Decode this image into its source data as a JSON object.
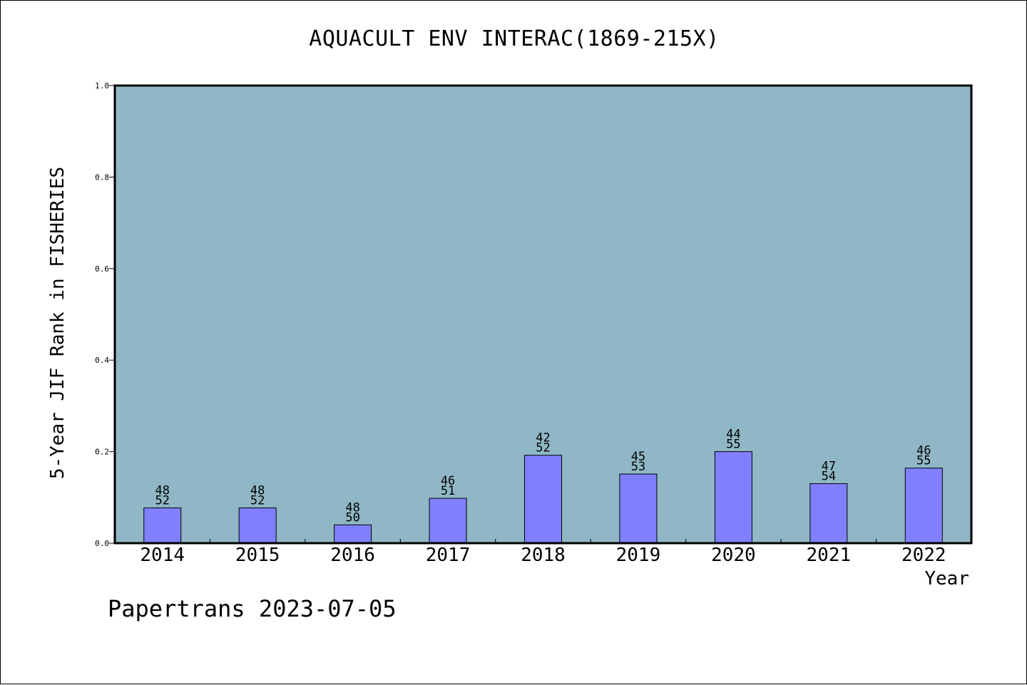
{
  "colors": {
    "plot_background": "#8fb7c5",
    "bar_fill": "#8080ff",
    "axis": "#000000"
  },
  "footer": "Papertrans 2023-07-05",
  "chart_data": {
    "type": "bar",
    "title": "AQUACULT ENV INTERAC(1869-215X)",
    "xlabel": "Year",
    "ylabel": "5-Year JIF Rank in FISHERIES",
    "ylim": [
      0,
      1.0
    ],
    "yticks": [
      "0.0",
      "0.2",
      "0.4",
      "0.6",
      "0.8",
      "1.0"
    ],
    "grid": false,
    "categories": [
      "2014",
      "2015",
      "2016",
      "2017",
      "2018",
      "2019",
      "2020",
      "2021",
      "2022"
    ],
    "values": [
      0.077,
      0.077,
      0.04,
      0.098,
      0.192,
      0.151,
      0.2,
      0.13,
      0.164
    ],
    "annotations": [
      [
        "48",
        "52"
      ],
      [
        "48",
        "52"
      ],
      [
        "48",
        "50"
      ],
      [
        "46",
        "51"
      ],
      [
        "42",
        "52"
      ],
      [
        "45",
        "53"
      ],
      [
        "44",
        "55"
      ],
      [
        "47",
        "54"
      ],
      [
        "46",
        "55"
      ]
    ]
  }
}
